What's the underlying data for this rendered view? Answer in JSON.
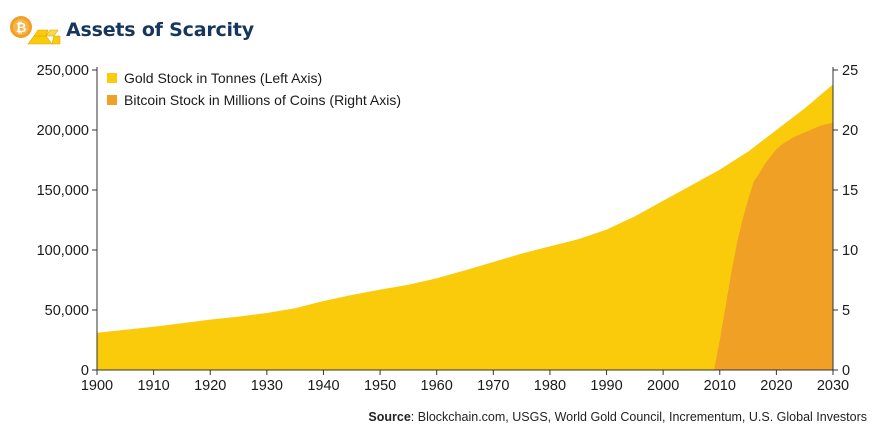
{
  "header": {
    "title": "Assets of Scarcity",
    "logo_icon": "bitcoin-gold-bars-icon"
  },
  "source": {
    "label": "Source",
    "text": ": Blockchain.com, USGS, World Gold Council, Incrementum, U.S. Global Investors"
  },
  "colors": {
    "gold": "#F9CB0A",
    "bitcoin": "#F0A024",
    "title": "#17365D"
  },
  "chart_data": {
    "type": "area",
    "x": [
      1900,
      1905,
      1910,
      1915,
      1920,
      1925,
      1930,
      1935,
      1940,
      1945,
      1950,
      1955,
      1960,
      1965,
      1970,
      1975,
      1980,
      1985,
      1990,
      1995,
      2000,
      2005,
      2010,
      2015,
      2020,
      2025,
      2030
    ],
    "xticks": [
      1900,
      1910,
      1920,
      1930,
      1940,
      1950,
      1960,
      1970,
      1980,
      1990,
      2000,
      2010,
      2020,
      2030
    ],
    "xlim": [
      1900,
      2030
    ],
    "y_left": {
      "ylim": [
        0,
        250000
      ],
      "ticks": [
        0,
        50000,
        100000,
        150000,
        200000,
        250000
      ],
      "tick_labels": [
        "0",
        "50,000",
        "100,000",
        "150,000",
        "200,000",
        "250,000"
      ]
    },
    "y_right": {
      "ylim": [
        0,
        25
      ],
      "ticks": [
        0,
        5,
        10,
        15,
        20,
        25
      ],
      "tick_labels": [
        "0",
        "5",
        "10",
        "15",
        "20",
        "25"
      ]
    },
    "legend_position": "top-left",
    "grid": false,
    "series": [
      {
        "name": "Gold Stock in Tonnes (Left Axis)",
        "axis": "left",
        "color": "#F9CB0A",
        "x": [
          1900,
          1905,
          1910,
          1915,
          1920,
          1925,
          1930,
          1935,
          1940,
          1945,
          1950,
          1955,
          1960,
          1965,
          1970,
          1975,
          1980,
          1985,
          1990,
          1995,
          2000,
          2005,
          2010,
          2015,
          2020,
          2025,
          2030
        ],
        "values": [
          31000,
          33500,
          36000,
          39000,
          42000,
          44500,
          47500,
          51500,
          57500,
          62500,
          67000,
          71000,
          76500,
          83000,
          90000,
          97000,
          103000,
          109000,
          117000,
          128000,
          141000,
          154000,
          167000,
          182000,
          200000,
          218000,
          238000
        ]
      },
      {
        "name": "Bitcoin Stock in Millions of Coins (Right Axis)",
        "axis": "right",
        "color": "#F0A024",
        "x": [
          2009,
          2010,
          2011,
          2012,
          2013,
          2014,
          2015,
          2016,
          2017,
          2018,
          2019,
          2020,
          2021,
          2022,
          2023,
          2024,
          2025,
          2026,
          2027,
          2028,
          2029,
          2030
        ],
        "values": [
          0,
          2.5,
          5.2,
          8.0,
          10.5,
          12.5,
          14.2,
          15.7,
          16.4,
          17.2,
          17.8,
          18.4,
          18.8,
          19.1,
          19.4,
          19.6,
          19.8,
          20.0,
          20.2,
          20.4,
          20.5,
          20.6
        ]
      }
    ]
  }
}
